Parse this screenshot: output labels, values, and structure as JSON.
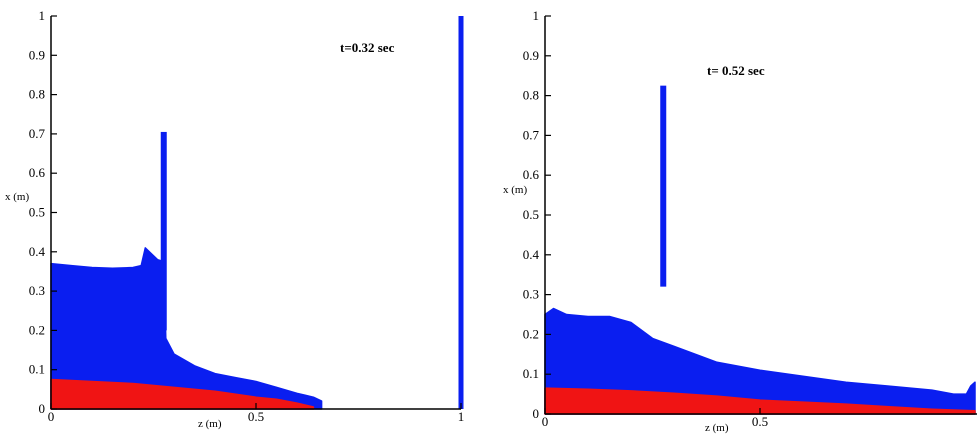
{
  "chart_data": [
    {
      "type": "area",
      "annotation": "t=0.32 sec",
      "xlabel": "z (m)",
      "ylabel": "x (m)",
      "xlim": [
        0,
        1
      ],
      "ylim": [
        0,
        1
      ],
      "x_ticks": [
        "0",
        "0.5",
        "1"
      ],
      "y_ticks": [
        "0",
        "0.1",
        "0.2",
        "0.3",
        "0.4",
        "0.5",
        "0.6",
        "0.7",
        "0.8",
        "0.9",
        "1"
      ],
      "colors": {
        "upper_fluid": "#0a1ef0",
        "lower_fluid": "#f01414",
        "axes": "#000000"
      },
      "gate": {
        "z": 0.275,
        "x_bottom": 0.2,
        "x_top": 0.705
      },
      "right_wall": {
        "z": 1.0,
        "x_bottom": 0.0,
        "x_top": 1.0
      },
      "series": [
        {
          "z": [
            0,
            0.05,
            0.1,
            0.15,
            0.2,
            0.22,
            0.23,
            0.26,
            0.275,
            0.28,
            0.3,
            0.35,
            0.4,
            0.45,
            0.5,
            0.55,
            0.6,
            0.62,
            0.64,
            0.66
          ],
          "x": [
            0.37,
            0.365,
            0.36,
            0.358,
            0.36,
            0.365,
            0.41,
            0.38,
            0.375,
            0.18,
            0.14,
            0.11,
            0.09,
            0.08,
            0.07,
            0.055,
            0.04,
            0.035,
            0.03,
            0.02
          ]
        },
        {
          "z": [
            0,
            0.1,
            0.2,
            0.3,
            0.4,
            0.5,
            0.55,
            0.6,
            0.64
          ],
          "x": [
            0.075,
            0.07,
            0.065,
            0.055,
            0.045,
            0.03,
            0.025,
            0.015,
            0.005
          ]
        }
      ]
    },
    {
      "type": "area",
      "annotation": "t= 0.52 sec",
      "xlabel": "z (m)",
      "ylabel": "x (m)",
      "xlim": [
        0,
        1
      ],
      "ylim": [
        0,
        1
      ],
      "x_ticks": [
        "0",
        "0.5"
      ],
      "y_ticks": [
        "0",
        "0.1",
        "0.2",
        "0.3",
        "0.4",
        "0.5",
        "0.6",
        "0.7",
        "0.8",
        "0.9",
        "1"
      ],
      "colors": {
        "upper_fluid": "#0a1ef0",
        "lower_fluid": "#f01414",
        "axes": "#000000"
      },
      "gate": {
        "z": 0.275,
        "x_bottom": 0.32,
        "x_top": 0.825
      },
      "series": [
        {
          "z": [
            0,
            0.02,
            0.05,
            0.1,
            0.15,
            0.2,
            0.25,
            0.3,
            0.35,
            0.4,
            0.45,
            0.5,
            0.6,
            0.7,
            0.8,
            0.9,
            0.95,
            0.98,
            0.99,
            1.0
          ],
          "x": [
            0.25,
            0.265,
            0.25,
            0.245,
            0.245,
            0.23,
            0.19,
            0.17,
            0.15,
            0.13,
            0.12,
            0.11,
            0.095,
            0.08,
            0.07,
            0.06,
            0.05,
            0.05,
            0.07,
            0.08
          ]
        },
        {
          "z": [
            0,
            0.1,
            0.2,
            0.3,
            0.4,
            0.5,
            0.6,
            0.7,
            0.8,
            0.9,
            1.0
          ],
          "x": [
            0.065,
            0.062,
            0.058,
            0.052,
            0.045,
            0.035,
            0.03,
            0.025,
            0.018,
            0.012,
            0.008
          ]
        }
      ]
    }
  ]
}
